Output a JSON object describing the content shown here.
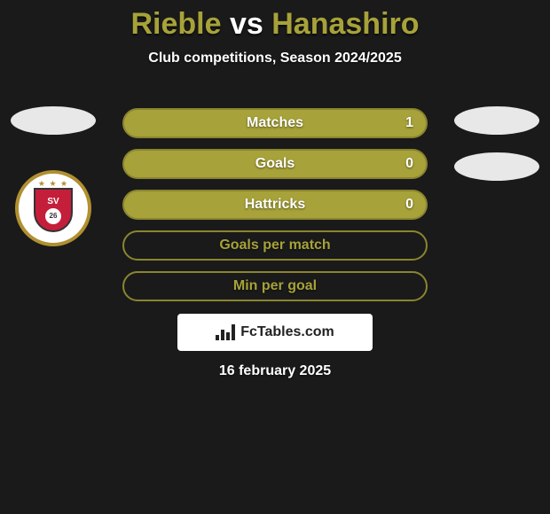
{
  "header": {
    "player_a": "Rieble",
    "vs_word": "vs",
    "player_b": "Hanashiro",
    "player_a_color": "#a7a239",
    "vs_color": "#ffffff",
    "player_b_color": "#a7a239",
    "subtitle": "Club competitions, Season 2024/2025"
  },
  "stats": {
    "bar_color_filled": "#a7a239",
    "bar_color_empty": "#8a852f",
    "border_color": "#8a852f",
    "rows": [
      {
        "label": "Matches",
        "left": "",
        "right": "1",
        "fill_pct": 100
      },
      {
        "label": "Goals",
        "left": "",
        "right": "0",
        "fill_pct": 100
      },
      {
        "label": "Hattricks",
        "left": "",
        "right": "0",
        "fill_pct": 100
      },
      {
        "label": "Goals per match",
        "left": "",
        "right": "",
        "fill_pct": 0
      },
      {
        "label": "Min per goal",
        "left": "",
        "right": "",
        "fill_pct": 0
      }
    ]
  },
  "left_side": {
    "avatar_present": true,
    "club_badge": {
      "initials": "SV",
      "established": "26",
      "ring_color": "#b09030",
      "shield_color": "#c41e3a"
    }
  },
  "right_side": {
    "avatars_count": 2
  },
  "branding": {
    "text": "FcTables.com"
  },
  "footer": {
    "date": "16 february 2025"
  },
  "colors": {
    "background": "#1a1a1a"
  }
}
